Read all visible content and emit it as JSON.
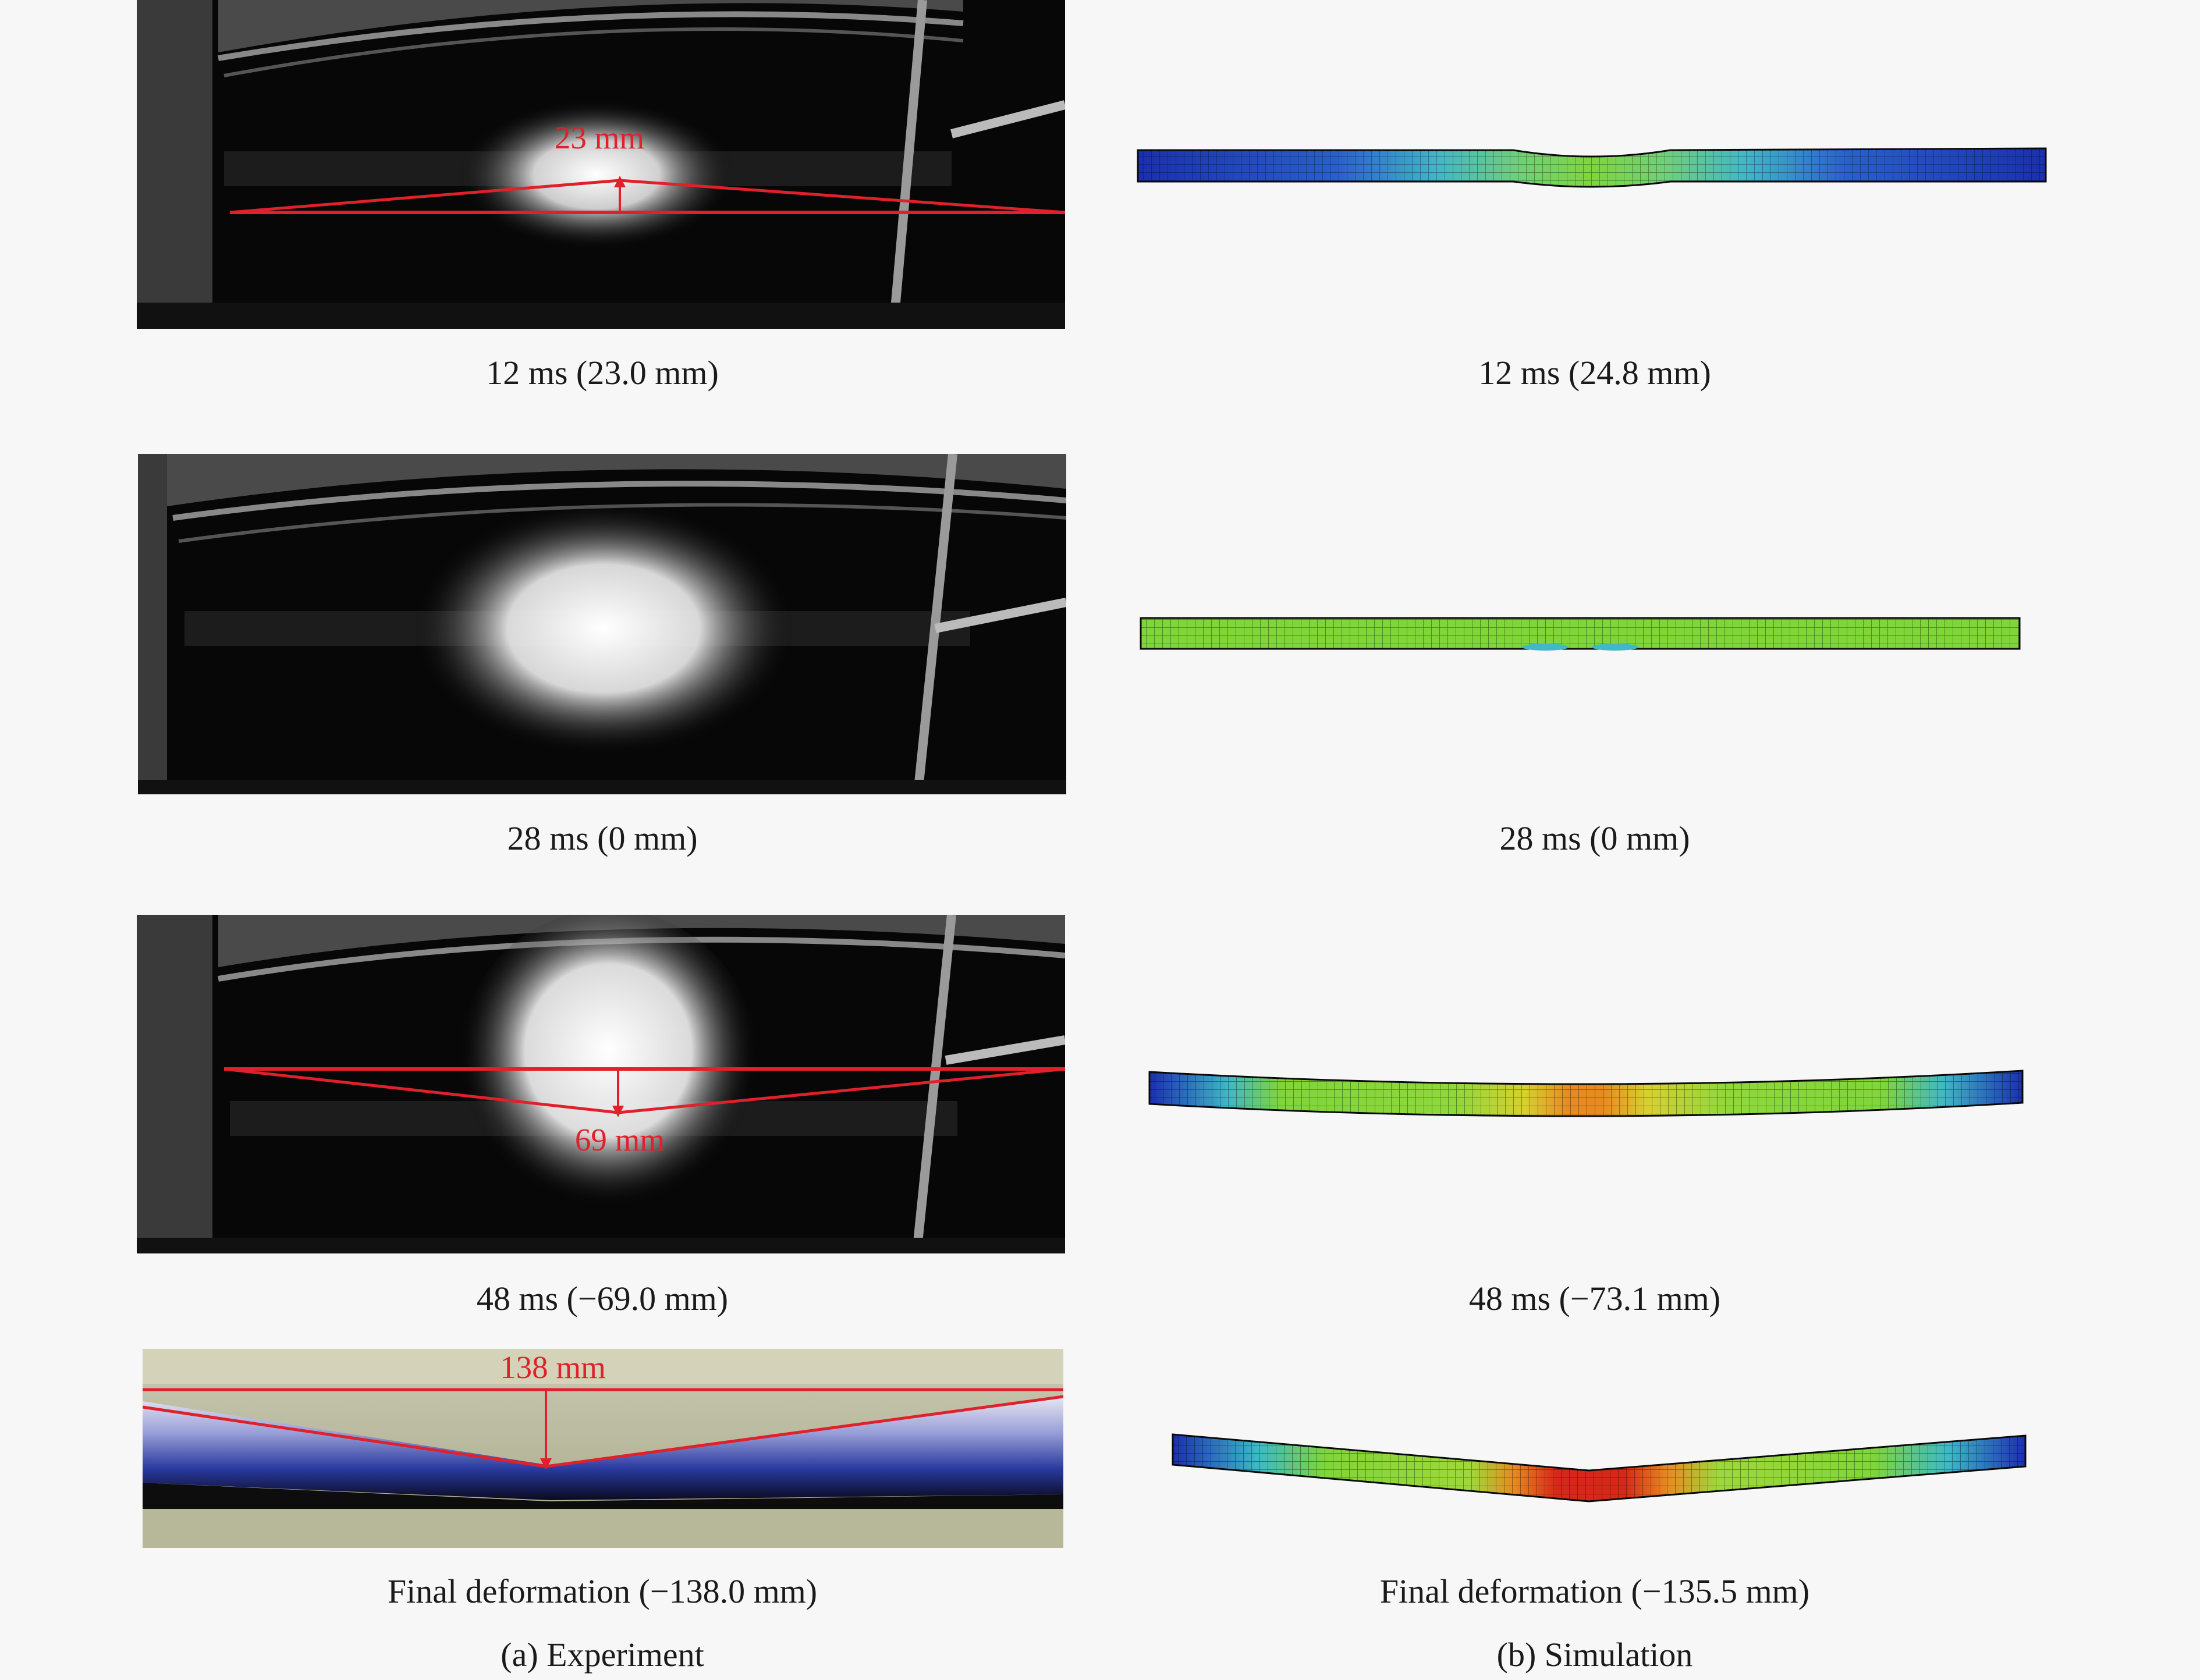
{
  "figure": {
    "rows": [
      {
        "experiment": {
          "caption": "12 ms (23.0 mm)",
          "annotation": "23 mm"
        },
        "simulation": {
          "caption": "12 ms (24.8 mm)"
        }
      },
      {
        "experiment": {
          "caption": "28 ms (0 mm)"
        },
        "simulation": {
          "caption": "28 ms (0 mm)"
        }
      },
      {
        "experiment": {
          "caption": "48 ms (−69.0 mm)",
          "annotation": "69 mm"
        },
        "simulation": {
          "caption": "48 ms (−73.1 mm)"
        }
      },
      {
        "experiment": {
          "caption": "Final deformation (−138.0 mm)",
          "annotation": "138 mm"
        },
        "simulation": {
          "caption": "Final deformation (−135.5 mm)"
        }
      }
    ],
    "panel_labels": {
      "experiment": "(a) Experiment",
      "simulation": "(b) Simulation"
    }
  },
  "colors": {
    "annotation_red": "#e0202a",
    "contour_blue": "#1a2fb0",
    "contour_cyan": "#3fb8c8",
    "contour_green": "#7fd63a",
    "contour_yellow": "#d8d030",
    "contour_orange": "#e88a20",
    "contour_red": "#d62818"
  }
}
